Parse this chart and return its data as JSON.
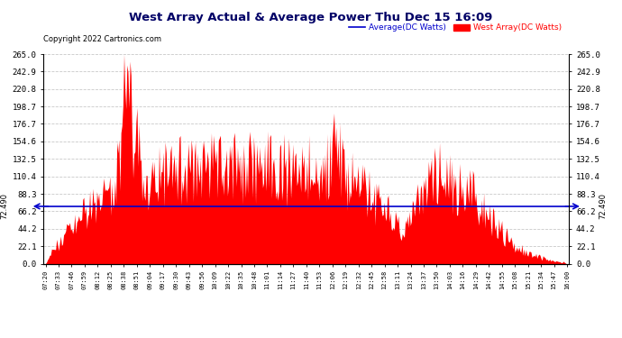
{
  "title": "West Array Actual & Average Power Thu Dec 15 16:09",
  "copyright": "Copyright 2022 Cartronics.com",
  "legend_avg": "Average(DC Watts)",
  "legend_west": "West Array(DC Watts)",
  "avg_value": 72.49,
  "ylim_min": 0.0,
  "ylim_max": 265.0,
  "yticks": [
    0.0,
    22.1,
    44.2,
    66.2,
    88.3,
    110.4,
    132.5,
    154.6,
    176.7,
    198.7,
    220.8,
    242.9,
    265.0
  ],
  "avg_line_color": "#0000cc",
  "bar_color": "#ff0000",
  "background_color": "#ffffff",
  "grid_color": "#bbbbbb",
  "title_color": "#000066",
  "copyright_color": "#000000",
  "xticks_labels": [
    "07:20",
    "07:33",
    "07:46",
    "07:59",
    "08:12",
    "08:25",
    "08:38",
    "08:51",
    "09:04",
    "09:17",
    "09:30",
    "09:43",
    "09:56",
    "10:09",
    "10:22",
    "10:35",
    "10:48",
    "11:01",
    "11:14",
    "11:27",
    "11:40",
    "11:53",
    "12:06",
    "12:19",
    "12:32",
    "12:45",
    "12:58",
    "13:11",
    "13:24",
    "13:37",
    "13:50",
    "14:03",
    "14:16",
    "14:29",
    "14:42",
    "14:55",
    "15:08",
    "15:21",
    "15:34",
    "15:47",
    "16:00"
  ]
}
